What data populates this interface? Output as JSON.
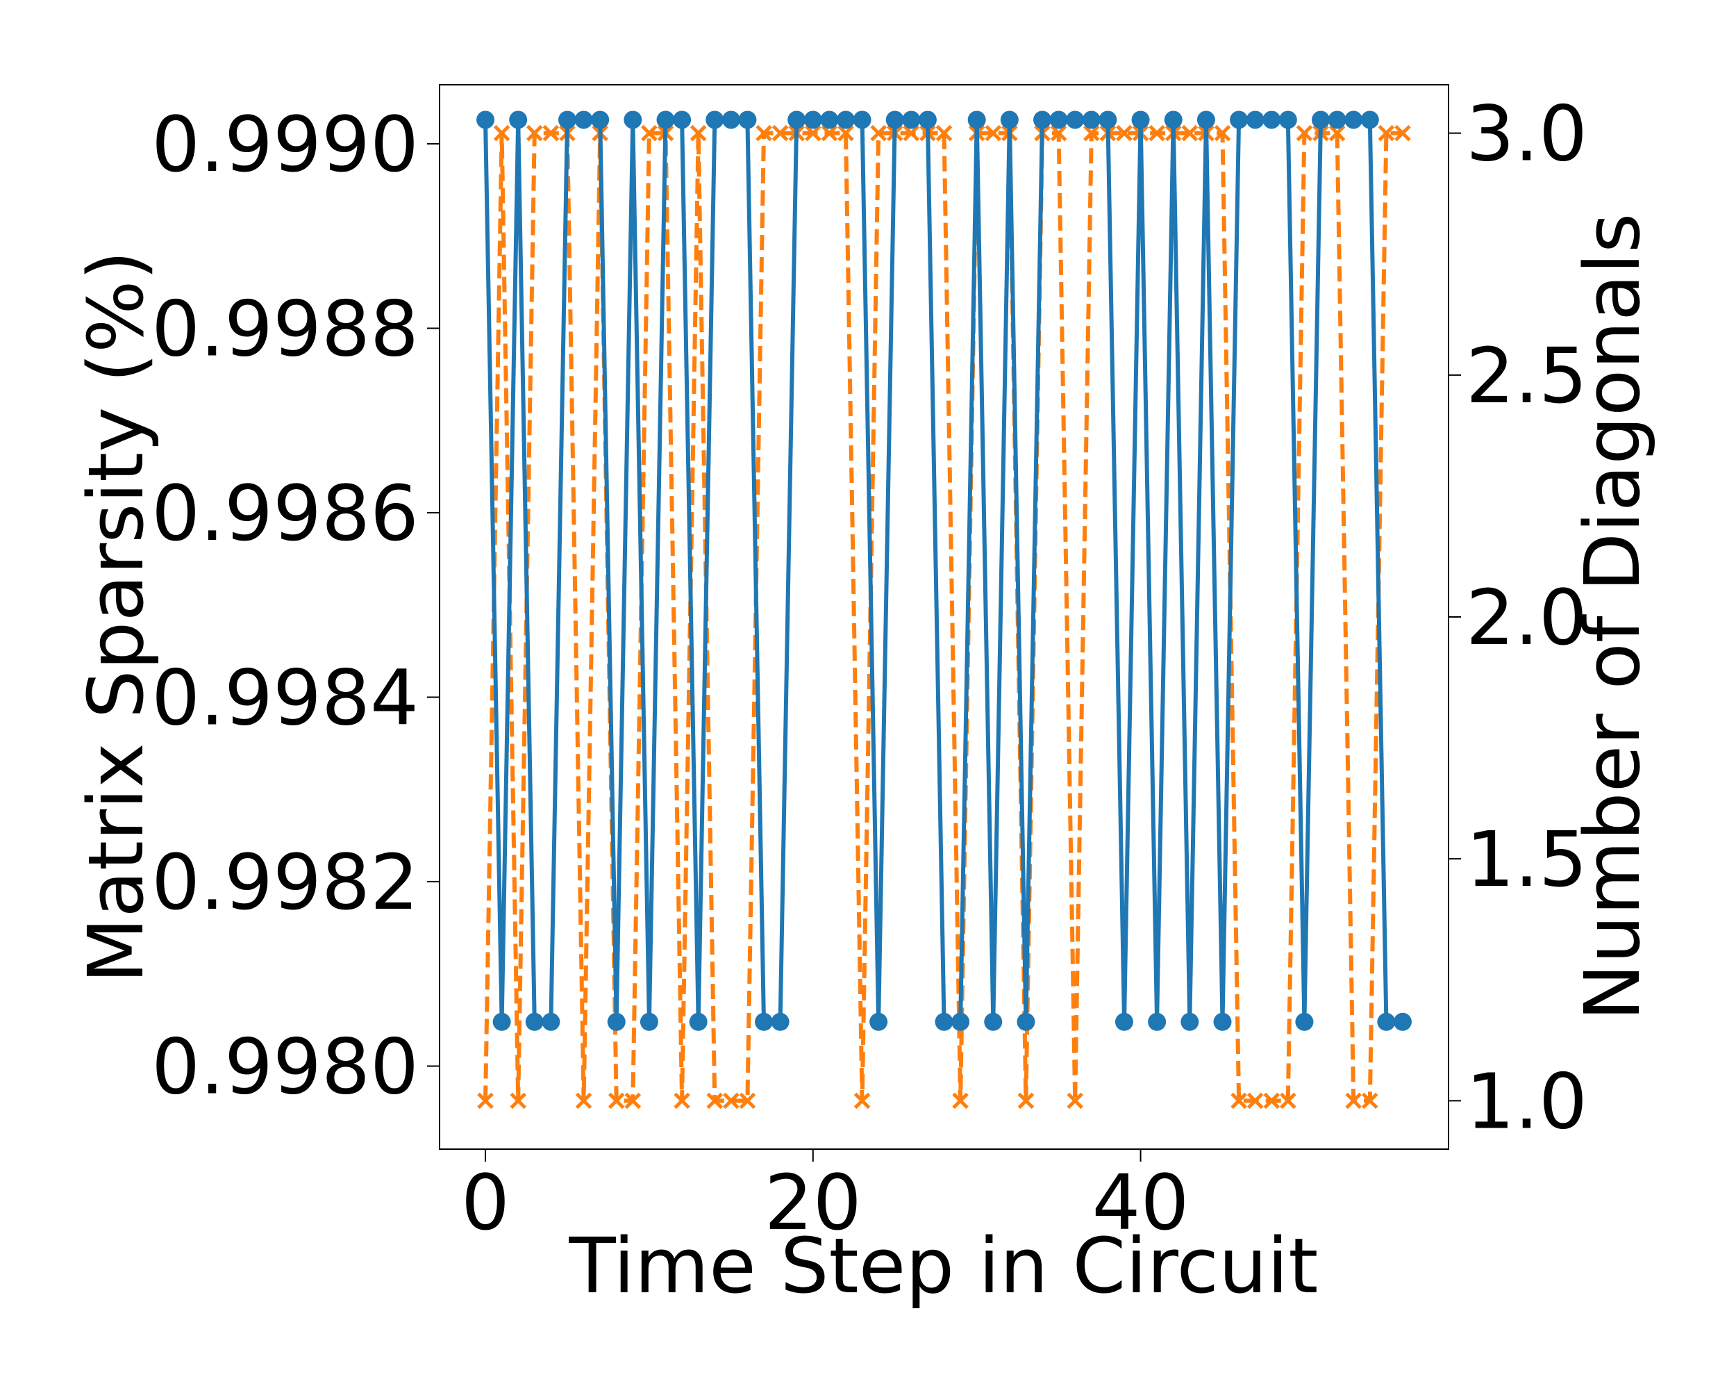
{
  "chart_data": {
    "type": "line",
    "title": "",
    "xlabel": "Time Step in Circuit",
    "ylabel": "Matrix Sparsity (%)",
    "y2label": "Number of Diagonals",
    "xlim": [
      -2.8,
      58.8
    ],
    "ylim": [
      0.99791,
      0.999064
    ],
    "y2lim": [
      0.9,
      3.1
    ],
    "xticks": [
      "0",
      "20",
      "40"
    ],
    "xtick_values": [
      0,
      20,
      40
    ],
    "yticks": [
      "0.9980",
      "0.9982",
      "0.9984",
      "0.9986",
      "0.9988",
      "0.9990"
    ],
    "ytick_values": [
      0.998,
      0.9982,
      0.9984,
      0.9986,
      0.9988,
      0.999
    ],
    "y2ticks": [
      "1.0",
      "1.5",
      "2.0",
      "2.5",
      "3.0"
    ],
    "y2tick_values": [
      1.0,
      1.5,
      2.0,
      2.5,
      3.0
    ],
    "grid": false,
    "legend": "none",
    "x": [
      0,
      1,
      2,
      3,
      4,
      5,
      6,
      7,
      8,
      9,
      10,
      11,
      12,
      13,
      14,
      15,
      16,
      17,
      18,
      19,
      20,
      21,
      22,
      23,
      24,
      25,
      26,
      27,
      28,
      29,
      30,
      31,
      32,
      33,
      34,
      35,
      36,
      37,
      38,
      39,
      40,
      41,
      42,
      43,
      44,
      45,
      46,
      47,
      48,
      49,
      50,
      51,
      52,
      53,
      54,
      55,
      56
    ],
    "series": [
      {
        "axis": "left",
        "color": "#1f77b4",
        "style": "solid",
        "marker": "circle",
        "values": [
          0.999026,
          0.998048,
          0.999026,
          0.998048,
          0.998048,
          0.999026,
          0.999026,
          0.999026,
          0.998048,
          0.999026,
          0.998048,
          0.999026,
          0.999026,
          0.998048,
          0.999026,
          0.999026,
          0.999026,
          0.998048,
          0.998048,
          0.999026,
          0.999026,
          0.999026,
          0.999026,
          0.999026,
          0.998048,
          0.999026,
          0.999026,
          0.999026,
          0.998048,
          0.998048,
          0.999026,
          0.998048,
          0.999026,
          0.998048,
          0.999026,
          0.999026,
          0.999026,
          0.999026,
          0.999026,
          0.998048,
          0.999026,
          0.998048,
          0.999026,
          0.998048,
          0.999026,
          0.998048,
          0.999026,
          0.999026,
          0.999026,
          0.999026,
          0.998048,
          0.999026,
          0.999026,
          0.999026,
          0.999026,
          0.998048,
          0.998048
        ]
      },
      {
        "axis": "right",
        "color": "#ff7f0e",
        "style": "dashed",
        "marker": "x",
        "values": [
          1,
          3,
          1,
          3,
          3,
          3,
          1,
          3,
          1,
          1,
          3,
          3,
          1,
          3,
          1,
          1,
          1,
          3,
          3,
          3,
          3,
          3,
          3,
          1,
          3,
          3,
          3,
          3,
          3,
          1,
          3,
          3,
          3,
          1,
          3,
          3,
          1,
          3,
          3,
          3,
          3,
          3,
          3,
          3,
          3,
          3,
          1,
          1,
          1,
          1,
          3,
          3,
          3,
          1,
          1,
          3,
          3
        ]
      }
    ]
  }
}
